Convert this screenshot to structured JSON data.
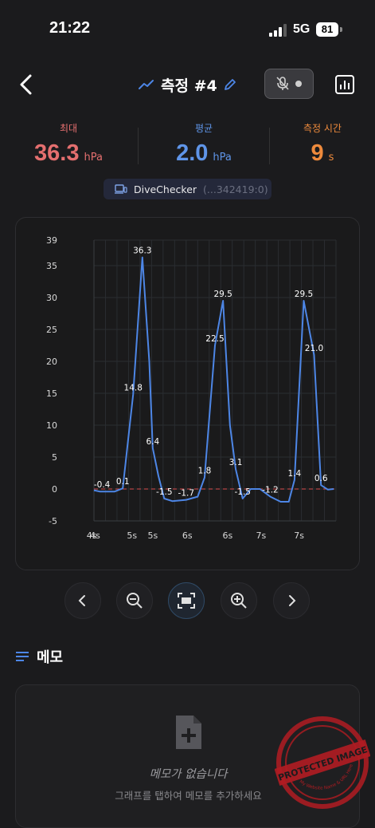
{
  "status_bar": {
    "time": "21:22",
    "network": "5G",
    "battery": "81"
  },
  "header": {
    "title": "측정 #4"
  },
  "stats": {
    "max": {
      "label": "최대",
      "value": "36.3",
      "unit": "hPa",
      "color": "#e46f6f"
    },
    "avg": {
      "label": "평균",
      "value": "2.0",
      "unit": "hPa",
      "color": "#5f95e8"
    },
    "duration": {
      "label": "측정 시간",
      "value": "9",
      "unit": "s",
      "color": "#ee8a3c"
    }
  },
  "device": {
    "name": "DiveChecker",
    "id": "(...342419:0)"
  },
  "chart_data": {
    "type": "line",
    "y_ticks": [
      "39",
      "35",
      "30",
      "25",
      "20",
      "15",
      "10",
      "5",
      "0",
      "-5"
    ],
    "x_tick_labels": [
      "4s",
      "4s",
      "5s",
      "5s",
      "6s",
      "6s",
      "7s",
      "7s"
    ],
    "ylim": [
      -5,
      39
    ],
    "baseline": 0,
    "series": [
      {
        "color": "#4d86e6",
        "points": [
          [
            0,
            -0.2
          ],
          [
            0.5,
            -0.4
          ],
          [
            1.8,
            -0.4
          ],
          [
            2.5,
            0.1
          ],
          [
            3.4,
            14.8
          ],
          [
            4.2,
            36.3
          ],
          [
            4.8,
            20
          ],
          [
            5.1,
            6.4
          ],
          [
            5.6,
            2
          ],
          [
            6.1,
            -1.5
          ],
          [
            6.8,
            -1.9
          ],
          [
            8.0,
            -1.7
          ],
          [
            9.0,
            -1.2
          ],
          [
            9.6,
            1.8
          ],
          [
            10.5,
            22.5
          ],
          [
            11.2,
            29.5
          ],
          [
            11.8,
            10
          ],
          [
            12.3,
            3.1
          ],
          [
            12.9,
            -1.5
          ],
          [
            13.6,
            0
          ],
          [
            14.4,
            0
          ],
          [
            15.3,
            -1.2
          ],
          [
            16.2,
            -2.0
          ],
          [
            16.9,
            -2.0
          ],
          [
            17.4,
            1.4
          ],
          [
            18.2,
            29.5
          ],
          [
            19.1,
            21.0
          ],
          [
            19.7,
            0.6
          ],
          [
            20.3,
            -0.1
          ],
          [
            20.8,
            0
          ]
        ],
        "labels": [
          {
            "text": "-0.4",
            "x": 0.7,
            "y": -0.4
          },
          {
            "text": "0.1",
            "x": 2.5,
            "y": 0.1
          },
          {
            "text": "14.8",
            "x": 3.4,
            "y": 14.8
          },
          {
            "text": "36.3",
            "x": 4.2,
            "y": 36.3
          },
          {
            "text": "6.4",
            "x": 5.1,
            "y": 6.4
          },
          {
            "text": "-1.5",
            "x": 6.1,
            "y": -1.5
          },
          {
            "text": "-1.7",
            "x": 8.0,
            "y": -1.7
          },
          {
            "text": "1.8",
            "x": 9.6,
            "y": 1.8
          },
          {
            "text": "22.5",
            "x": 10.5,
            "y": 22.5
          },
          {
            "text": "29.5",
            "x": 11.2,
            "y": 29.5
          },
          {
            "text": "3.1",
            "x": 12.3,
            "y": 3.1
          },
          {
            "text": "-1.5",
            "x": 12.9,
            "y": -1.5
          },
          {
            "text": "-1.2",
            "x": 15.3,
            "y": -1.2
          },
          {
            "text": "1.4",
            "x": 17.4,
            "y": 1.4
          },
          {
            "text": "29.5",
            "x": 18.2,
            "y": 29.5
          },
          {
            "text": "21.0",
            "x": 19.1,
            "y": 21.0
          },
          {
            "text": "0.6",
            "x": 19.7,
            "y": 0.6
          }
        ]
      }
    ],
    "xlim": [
      0,
      21
    ],
    "grid": true
  },
  "memo": {
    "title": "메모",
    "empty_text": "메모가 없습니다",
    "hint_text": "그래프를 탭하여 메모를 추가하세요"
  },
  "watermark": {
    "text": "PROTECTED IMAGE",
    "subtext": "My Website Name & URL Here",
    "color": "#b11c22"
  }
}
